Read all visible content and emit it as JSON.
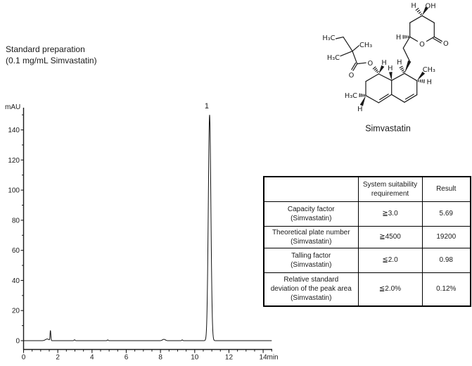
{
  "header": {
    "line1": "Standard preparation",
    "line2": "(0.1 mg/mL Simvastatin)"
  },
  "structure": {
    "caption": "Simvastatin",
    "labels": {
      "h": "H",
      "oh": "OH",
      "o": "O",
      "ch3": "CH₃",
      "h3c": "H₃C"
    }
  },
  "chart_data": {
    "type": "line",
    "title": "",
    "xlabel": "min",
    "ylabel": "mAU",
    "xlim": [
      0,
      14.55
    ],
    "ylim": [
      0,
      155
    ],
    "x_major_ticks": [
      0,
      2,
      4,
      6,
      8,
      10,
      12,
      14
    ],
    "x_minor_step": 0.5,
    "y_major_ticks": [
      0,
      20,
      40,
      60,
      80,
      100,
      120,
      140
    ],
    "y_minor_step": 10,
    "grid": false,
    "legend": "none",
    "peaks": [
      {
        "label": "",
        "rt": 1.38,
        "height_mau": 1.1,
        "sigma": 0.1
      },
      {
        "label": "",
        "rt": 1.57,
        "height_mau": 6.6,
        "sigma": 0.022
      },
      {
        "label": "",
        "rt": 2.98,
        "height_mau": 0.6,
        "sigma": 0.03
      },
      {
        "label": "",
        "rt": 4.92,
        "height_mau": 0.5,
        "sigma": 0.03
      },
      {
        "label": "",
        "rt": 8.2,
        "height_mau": 0.9,
        "sigma": 0.08
      },
      {
        "label": "",
        "rt": 9.27,
        "height_mau": 0.5,
        "sigma": 0.03
      },
      {
        "label": "1",
        "rt": 10.87,
        "height_mau": 150,
        "sigma": 0.075
      }
    ]
  },
  "table": {
    "headers": [
      "",
      "System suitability\nrequirement",
      "Result"
    ],
    "rows": [
      {
        "parameter": "Capacity factor\n(Simvastatin)",
        "requirement": "≧3.0",
        "result": "5.69"
      },
      {
        "parameter": "Theoretical plate number\n(Simvastatin)",
        "requirement": "≧4500",
        "result": "19200"
      },
      {
        "parameter": "Talling factor\n(Simvastatin)",
        "requirement": "≦2.0",
        "result": "0.98"
      },
      {
        "parameter": "Relative standard\ndeviation of the peak area\n(Simvastatin)",
        "requirement": "≦2.0%",
        "result": "0.12%"
      }
    ]
  },
  "colors": {
    "ink": "#1a1a1a",
    "trace": "#111111",
    "background": "#ffffff"
  }
}
